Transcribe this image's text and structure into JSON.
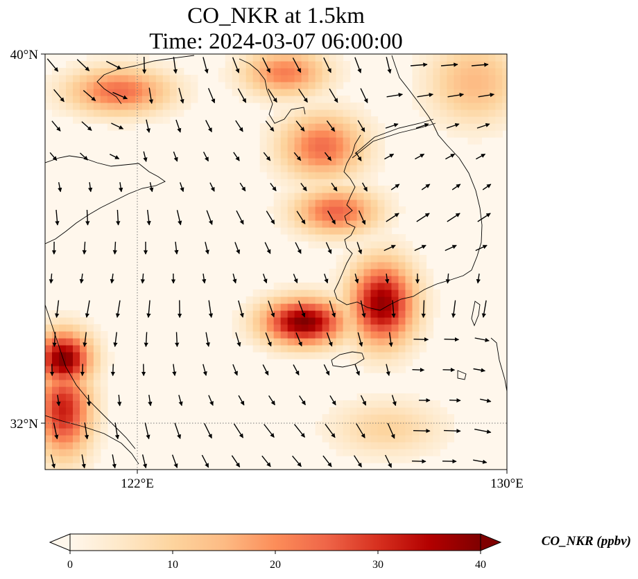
{
  "title": {
    "line1": "CO_NKR at 1.5km",
    "line2": "Time: 2024-03-07 06:00:00"
  },
  "map": {
    "lon_range": [
      120,
      130
    ],
    "lat_range": [
      31,
      40
    ],
    "lon_ticks": [
      {
        "value": 122,
        "label": "122°E"
      },
      {
        "value": 130,
        "label": "130°E"
      }
    ],
    "lat_ticks": [
      {
        "value": 40,
        "label": "40°N"
      },
      {
        "value": 32,
        "label": "32°N"
      }
    ],
    "gridlines": "dotted at 122°E and 32°N",
    "coastline_color": "#000000",
    "wind_vectors": "black arrows, predominantly north-westerly over the Yellow Sea"
  },
  "colorbar": {
    "label": "CO_NKR (ppbv)",
    "min": 0,
    "max": 40,
    "extend": "both",
    "colormap": "OrRd",
    "ticks": [
      {
        "value": 0,
        "label": "0"
      },
      {
        "value": 10,
        "label": "10"
      },
      {
        "value": 20,
        "label": "20"
      },
      {
        "value": 30,
        "label": "30"
      },
      {
        "value": 40,
        "label": "40"
      }
    ]
  },
  "chart_data": {
    "type": "heatmap",
    "variable": "CO_NKR",
    "units": "ppbv",
    "level": "1.5km",
    "time": "2024-03-07 06:00:00",
    "xlim": [
      120,
      130
    ],
    "ylim": [
      31,
      40
    ],
    "grid": true,
    "plumes": [
      {
        "lon": 125.6,
        "lat": 34.2,
        "value": 40,
        "lon_r": 0.9,
        "lat_r": 0.5
      },
      {
        "lon": 127.3,
        "lat": 34.6,
        "value": 38,
        "lon_r": 0.7,
        "lat_r": 0.9
      },
      {
        "lon": 126.3,
        "lat": 36.6,
        "value": 25,
        "lon_r": 0.9,
        "lat_r": 0.5
      },
      {
        "lon": 126.0,
        "lat": 38.0,
        "value": 24,
        "lon_r": 0.9,
        "lat_r": 0.7
      },
      {
        "lon": 125.2,
        "lat": 39.6,
        "value": 22,
        "lon_r": 0.9,
        "lat_r": 0.5
      },
      {
        "lon": 120.4,
        "lat": 33.4,
        "value": 40,
        "lon_r": 0.6,
        "lat_r": 0.6
      },
      {
        "lon": 120.4,
        "lat": 32.3,
        "value": 32,
        "lon_r": 0.6,
        "lat_r": 1.0
      },
      {
        "lon": 121.6,
        "lat": 39.2,
        "value": 24,
        "lon_r": 1.1,
        "lat_r": 0.5
      },
      {
        "lon": 129.3,
        "lat": 39.4,
        "value": 15,
        "lon_r": 1.0,
        "lat_r": 0.9
      },
      {
        "lon": 127.4,
        "lat": 31.9,
        "value": 10,
        "lon_r": 1.2,
        "lat_r": 0.6
      }
    ]
  }
}
